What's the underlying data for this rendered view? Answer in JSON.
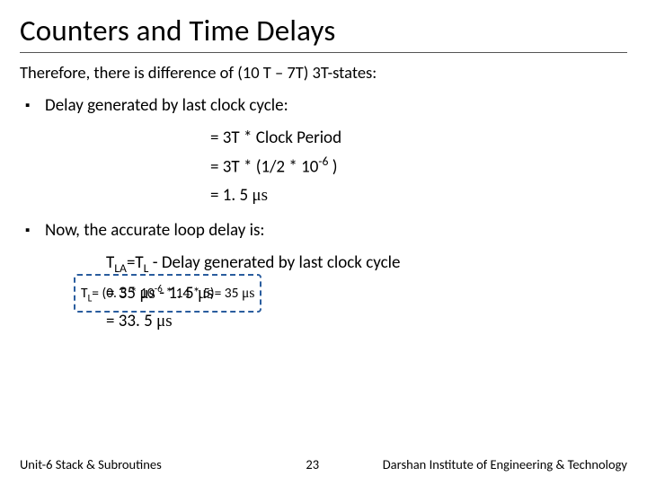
{
  "title": "Counters and Time Delays",
  "intro": "Therefore, there is difference of (10 T – 7T) 3T-states:",
  "bullets": {
    "b1": "Delay generated by last clock cycle:",
    "b2": "Now, the accurate loop delay is:"
  },
  "calc": {
    "l1_pre": "= 3T * Clock Period",
    "l2_a": "= 3T * (1/2 * 10",
    "l2_sup": "-6",
    "l2_b": " )",
    "l3_a": "= 1. 5 ",
    "l3_unit": "μs"
  },
  "eq": {
    "line1_a": "T",
    "line1_sub1": "LA",
    "line1_b": "=T",
    "line1_sub2": "L",
    "line1_c": " - Delay generated by last clock cycle",
    "line2_a": "= 35 ",
    "line2_u1": "μs",
    "line2_b": " - 1. 5 ",
    "line2_u2": "μs",
    "line3_a": "= 33. 5 ",
    "line3_u": "μs"
  },
  "overlay": {
    "a": "T",
    "sub": "L",
    "b": "= (0. 5 * 10",
    "sup": "-6",
    "c": " * 14 * 5)= 35 ",
    "u": "μs"
  },
  "footer": {
    "left": "Unit-6 Stack & Subroutines",
    "mid": "23",
    "right": "Darshan Institute of Engineering & Technology"
  }
}
